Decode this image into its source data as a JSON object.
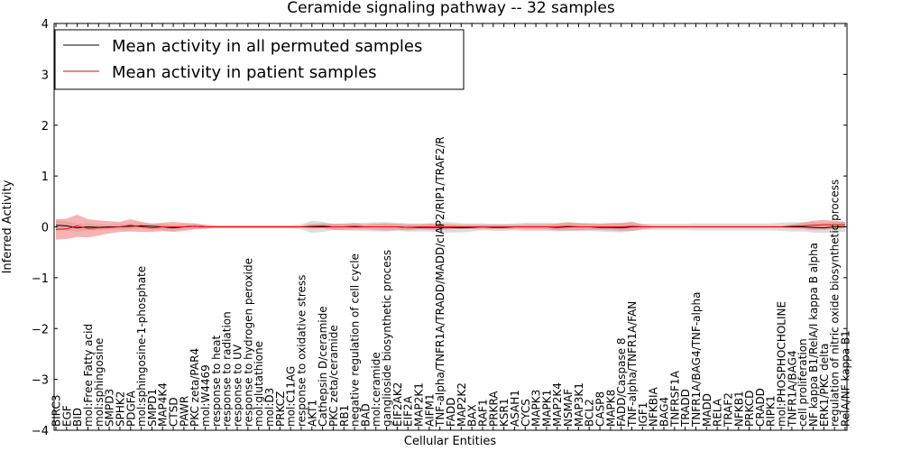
{
  "chart_data": {
    "type": "line",
    "title": "Ceramide signaling pathway -- 32 samples",
    "xlabel": "Cellular Entities",
    "ylabel": "Inferred Activity",
    "ylim": [
      -4,
      4
    ],
    "yticks": [
      -4,
      -3,
      -2,
      -1,
      0,
      1,
      2,
      3,
      4
    ],
    "ytick_labels": [
      "−4",
      "−3",
      "−2",
      "−1",
      "0",
      "1",
      "2",
      "3",
      "4"
    ],
    "legend_position": "top-left",
    "categories": [
      "BIRC3",
      "EGF",
      "BID",
      "mol:Free Fatty acid",
      "mol:sphingosine",
      "SMPD3",
      "SPHK2",
      "PDGFA",
      "mol:sphingosine-1-phosphate",
      "SMPD1",
      "MAP4K4",
      "CTSD",
      "PAWR",
      "PKC zeta/PAR4",
      "mol:W4469",
      "response to heat",
      "response to radiation",
      "response to UV",
      "response to hydrogen peroxide",
      "mol:glutathione",
      "mol:D3",
      "PRKCZ",
      "mol:C11AG",
      "response to oxidative stress",
      "AKT1",
      "Cathepsin D/ceramide",
      "PKC zeta/ceramide",
      "RB1",
      "negative regulation of cell cycle",
      "BAD",
      "mol:ceramide",
      "ganglioside biosynthetic process",
      "EIF2AK2",
      "EIF2A",
      "MAP2K1",
      "AIFM1",
      "TNF-alpha/TNFR1A/TRADD/MADD/cIAP2/RIP1/TRAF2/R",
      "FADD",
      "MAP2K2",
      "BAX",
      "RAF1",
      "PRKRA",
      "KSR1",
      "ASAH1",
      "CYCS",
      "MAPK3",
      "MAPK1",
      "MAP2K4",
      "NSMAF",
      "MAP3K1",
      "BCL2",
      "CASP8",
      "MAPK8",
      "FADD/Caspase 8",
      "TNF-alpha/TNFR1A/FAN",
      "IGF1",
      "NFKBIA",
      "BAG4",
      "TNFRSF1A",
      "TRADD",
      "TNFR1A/BAG4/TNF-alpha",
      "MADD",
      "RELA",
      "TRAF2",
      "NFKB1",
      "PRKCD",
      "CRADD",
      "RIPK1",
      "mol:PHOSPHOCHOLINE",
      "TNFR1A/BAG4",
      "cell proliferation",
      "NF kappa B1/RelA/I kappa B alpha",
      "ERK1/PKC delta",
      "regulation of nitric oxide biosynthetic process",
      "RelA/NF kappa B1"
    ],
    "series": [
      {
        "name": "Mean activity in all permuted samples",
        "color": "#000000",
        "band_color": "#c0c0c0",
        "values": [
          0.03,
          0.02,
          -0.02,
          0.0,
          -0.01,
          0.0,
          0.0,
          0.01,
          0.02,
          0.01,
          0.0,
          -0.02,
          0.0,
          0.01,
          0.0,
          0.0,
          0.0,
          0.0,
          0.0,
          0.0,
          0.0,
          0.0,
          0.0,
          0.0,
          0.0,
          0.0,
          0.0,
          0.0,
          0.0,
          0.0,
          0.0,
          0.0,
          0.0,
          -0.01,
          -0.01,
          -0.01,
          -0.01,
          -0.01,
          -0.02,
          -0.01,
          0.0,
          -0.01,
          -0.01,
          0.0,
          0.0,
          0.0,
          0.0,
          -0.01,
          0.0,
          0.0,
          0.0,
          -0.01,
          -0.01,
          -0.02,
          0.0,
          0.0,
          0.0,
          0.0,
          0.0,
          0.0,
          0.0,
          0.0,
          0.0,
          0.0,
          0.0,
          0.0,
          0.0,
          0.0,
          0.0,
          0.0,
          0.0,
          -0.01,
          -0.02,
          0.0,
          0.0
        ],
        "spread": [
          0.1,
          0.09,
          0.08,
          0.07,
          0.06,
          0.05,
          0.06,
          0.06,
          0.05,
          0.06,
          0.07,
          0.06,
          0.05,
          0.05,
          0.04,
          0.03,
          0.03,
          0.03,
          0.03,
          0.03,
          0.03,
          0.03,
          0.03,
          0.05,
          0.12,
          0.1,
          0.06,
          0.07,
          0.08,
          0.08,
          0.09,
          0.09,
          0.08,
          0.08,
          0.08,
          0.08,
          0.1,
          0.1,
          0.09,
          0.08,
          0.07,
          0.07,
          0.07,
          0.07,
          0.08,
          0.08,
          0.08,
          0.08,
          0.08,
          0.08,
          0.08,
          0.08,
          0.09,
          0.09,
          0.08,
          0.06,
          0.06,
          0.06,
          0.06,
          0.06,
          0.07,
          0.07,
          0.07,
          0.07,
          0.07,
          0.07,
          0.07,
          0.07,
          0.08,
          0.09,
          0.09,
          0.1,
          0.1,
          0.1,
          0.1
        ]
      },
      {
        "name": "Mean activity in patient samples",
        "color": "#ff0000",
        "band_color": "#f08080",
        "values": [
          -0.05,
          -0.04,
          0.02,
          -0.03,
          -0.02,
          -0.01,
          0.0,
          0.03,
          0.0,
          -0.02,
          0.0,
          0.0,
          0.0,
          0.01,
          0.0,
          0.0,
          0.0,
          0.0,
          0.0,
          0.0,
          0.0,
          0.0,
          0.0,
          0.0,
          0.01,
          0.02,
          0.0,
          0.0,
          0.01,
          0.0,
          0.0,
          0.0,
          0.0,
          -0.01,
          0.0,
          0.0,
          0.0,
          0.0,
          0.0,
          0.0,
          0.0,
          0.0,
          0.0,
          0.0,
          0.0,
          0.0,
          0.0,
          0.0,
          0.01,
          0.0,
          0.0,
          0.0,
          0.0,
          0.0,
          0.01,
          0.0,
          0.0,
          0.0,
          0.0,
          0.0,
          0.0,
          0.0,
          0.0,
          0.0,
          0.0,
          0.0,
          0.0,
          0.0,
          0.0,
          0.01,
          0.02,
          0.03,
          0.04,
          0.04,
          0.04
        ],
        "spread": [
          0.2,
          0.2,
          0.22,
          0.18,
          0.15,
          0.12,
          0.1,
          0.12,
          0.1,
          0.08,
          0.08,
          0.1,
          0.08,
          0.06,
          0.04,
          0.02,
          0.02,
          0.02,
          0.02,
          0.02,
          0.02,
          0.02,
          0.02,
          0.02,
          0.05,
          0.05,
          0.06,
          0.06,
          0.06,
          0.05,
          0.06,
          0.07,
          0.06,
          0.06,
          0.05,
          0.06,
          0.06,
          0.05,
          0.04,
          0.04,
          0.04,
          0.04,
          0.04,
          0.04,
          0.05,
          0.05,
          0.05,
          0.07,
          0.08,
          0.07,
          0.06,
          0.06,
          0.07,
          0.08,
          0.09,
          0.05,
          0.02,
          0.02,
          0.02,
          0.02,
          0.02,
          0.02,
          0.02,
          0.02,
          0.02,
          0.02,
          0.02,
          0.02,
          0.02,
          0.04,
          0.06,
          0.09,
          0.1,
          0.08,
          0.06
        ]
      }
    ]
  }
}
